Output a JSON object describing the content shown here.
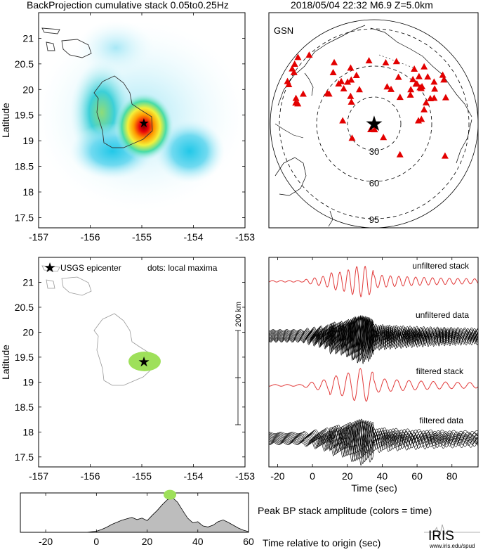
{
  "header": {
    "title": "BackProjection cumulative stack 0.05to0.25Hz",
    "event": "2018/05/04 22:32   M6.9   Z=5.0km"
  },
  "colors": {
    "frame": "#000000",
    "coast": "#333333",
    "station": "#e30000",
    "epicenter_star": "#1428e0",
    "stack_trace": "#e23b3b",
    "data_trace": "#000000",
    "maxima": "#9ee05a",
    "peak_fill": "#bdbdbd"
  },
  "logo": {
    "text": "IRIS",
    "url": "www.iris.edu/spud"
  },
  "chart_data": [
    {
      "id": "bp-stack-map",
      "type": "heatmap",
      "title": "BackProjection cumulative stack 0.05to0.25Hz",
      "xlabel": "",
      "ylabel": "Latitude",
      "xlim": [
        -157,
        -153
      ],
      "ylim": [
        17.3,
        21.5
      ],
      "x_ticks": [
        -157,
        -156,
        -155,
        -154,
        -153
      ],
      "y_ticks": [
        17.5,
        18,
        18.5,
        19,
        19.5,
        20,
        20.5,
        21
      ],
      "epicenter": {
        "lon": -155.0,
        "lat": 19.37
      },
      "blobs": [
        {
          "lon": -155.0,
          "lat": 19.37,
          "level": 1.0
        },
        {
          "lon": -155.8,
          "lat": 19.5,
          "level": 0.5
        },
        {
          "lon": -154.4,
          "lat": 19.0,
          "level": 0.45
        },
        {
          "lon": -155.6,
          "lat": 18.85,
          "level": 0.4
        },
        {
          "lon": -155.3,
          "lat": 20.5,
          "level": 0.25
        }
      ]
    },
    {
      "id": "station-map",
      "type": "scatter",
      "label": "GSN",
      "rings": [
        "30",
        "60",
        "95"
      ],
      "stations_visible": 62
    },
    {
      "id": "maxima-map",
      "type": "scatter",
      "ylabel": "Latitude",
      "xlim": [
        -157,
        -153
      ],
      "ylim": [
        17.3,
        21.5
      ],
      "x_ticks": [
        -157,
        -156,
        -155,
        -154,
        -153
      ],
      "y_ticks": [
        17.5,
        18,
        18.5,
        19,
        19.5,
        20,
        20.5,
        21
      ],
      "legend_epicenter": "USGS epicenter",
      "legend_dots": "dots: local maxima",
      "scale_label": "200 km",
      "epicenter": {
        "lon": -155.0,
        "lat": 19.37
      },
      "maxima": [
        {
          "lon": -154.96,
          "lat": 19.37
        }
      ]
    },
    {
      "id": "traces",
      "type": "line",
      "xlabel": "Time (sec)",
      "xlim": [
        -25,
        95
      ],
      "x_ticks": [
        -20,
        0,
        20,
        40,
        60,
        80
      ],
      "series": [
        {
          "name": "unfiltered stack"
        },
        {
          "name": "unfiltered data"
        },
        {
          "name": "filtered stack"
        },
        {
          "name": "filtered data"
        }
      ]
    },
    {
      "id": "peak-amplitude",
      "type": "area",
      "title": "Peak BP stack amplitude (colors = time)",
      "xlabel": "Time relative to origin (sec)",
      "xlim": [
        -30,
        60
      ],
      "ylim": [
        0,
        1.0
      ],
      "x_ticks": [
        -20,
        0,
        20,
        40,
        60
      ],
      "x": [
        -30,
        -4,
        0,
        2,
        4,
        6,
        8,
        10,
        12,
        14,
        16,
        18,
        20,
        22,
        24,
        26,
        28,
        30,
        32,
        34,
        36,
        38,
        40,
        42,
        44,
        46,
        48,
        50,
        52,
        54,
        56,
        58,
        60
      ],
      "values": [
        0.0,
        0.0,
        0.03,
        0.08,
        0.14,
        0.22,
        0.28,
        0.34,
        0.38,
        0.42,
        0.36,
        0.4,
        0.33,
        0.48,
        0.62,
        0.78,
        0.92,
        0.98,
        0.85,
        0.62,
        0.4,
        0.27,
        0.3,
        0.18,
        0.15,
        0.2,
        0.3,
        0.35,
        0.28,
        0.2,
        0.12,
        0.06,
        0.02
      ],
      "peak": {
        "x": 29,
        "y": 1.0
      }
    }
  ]
}
